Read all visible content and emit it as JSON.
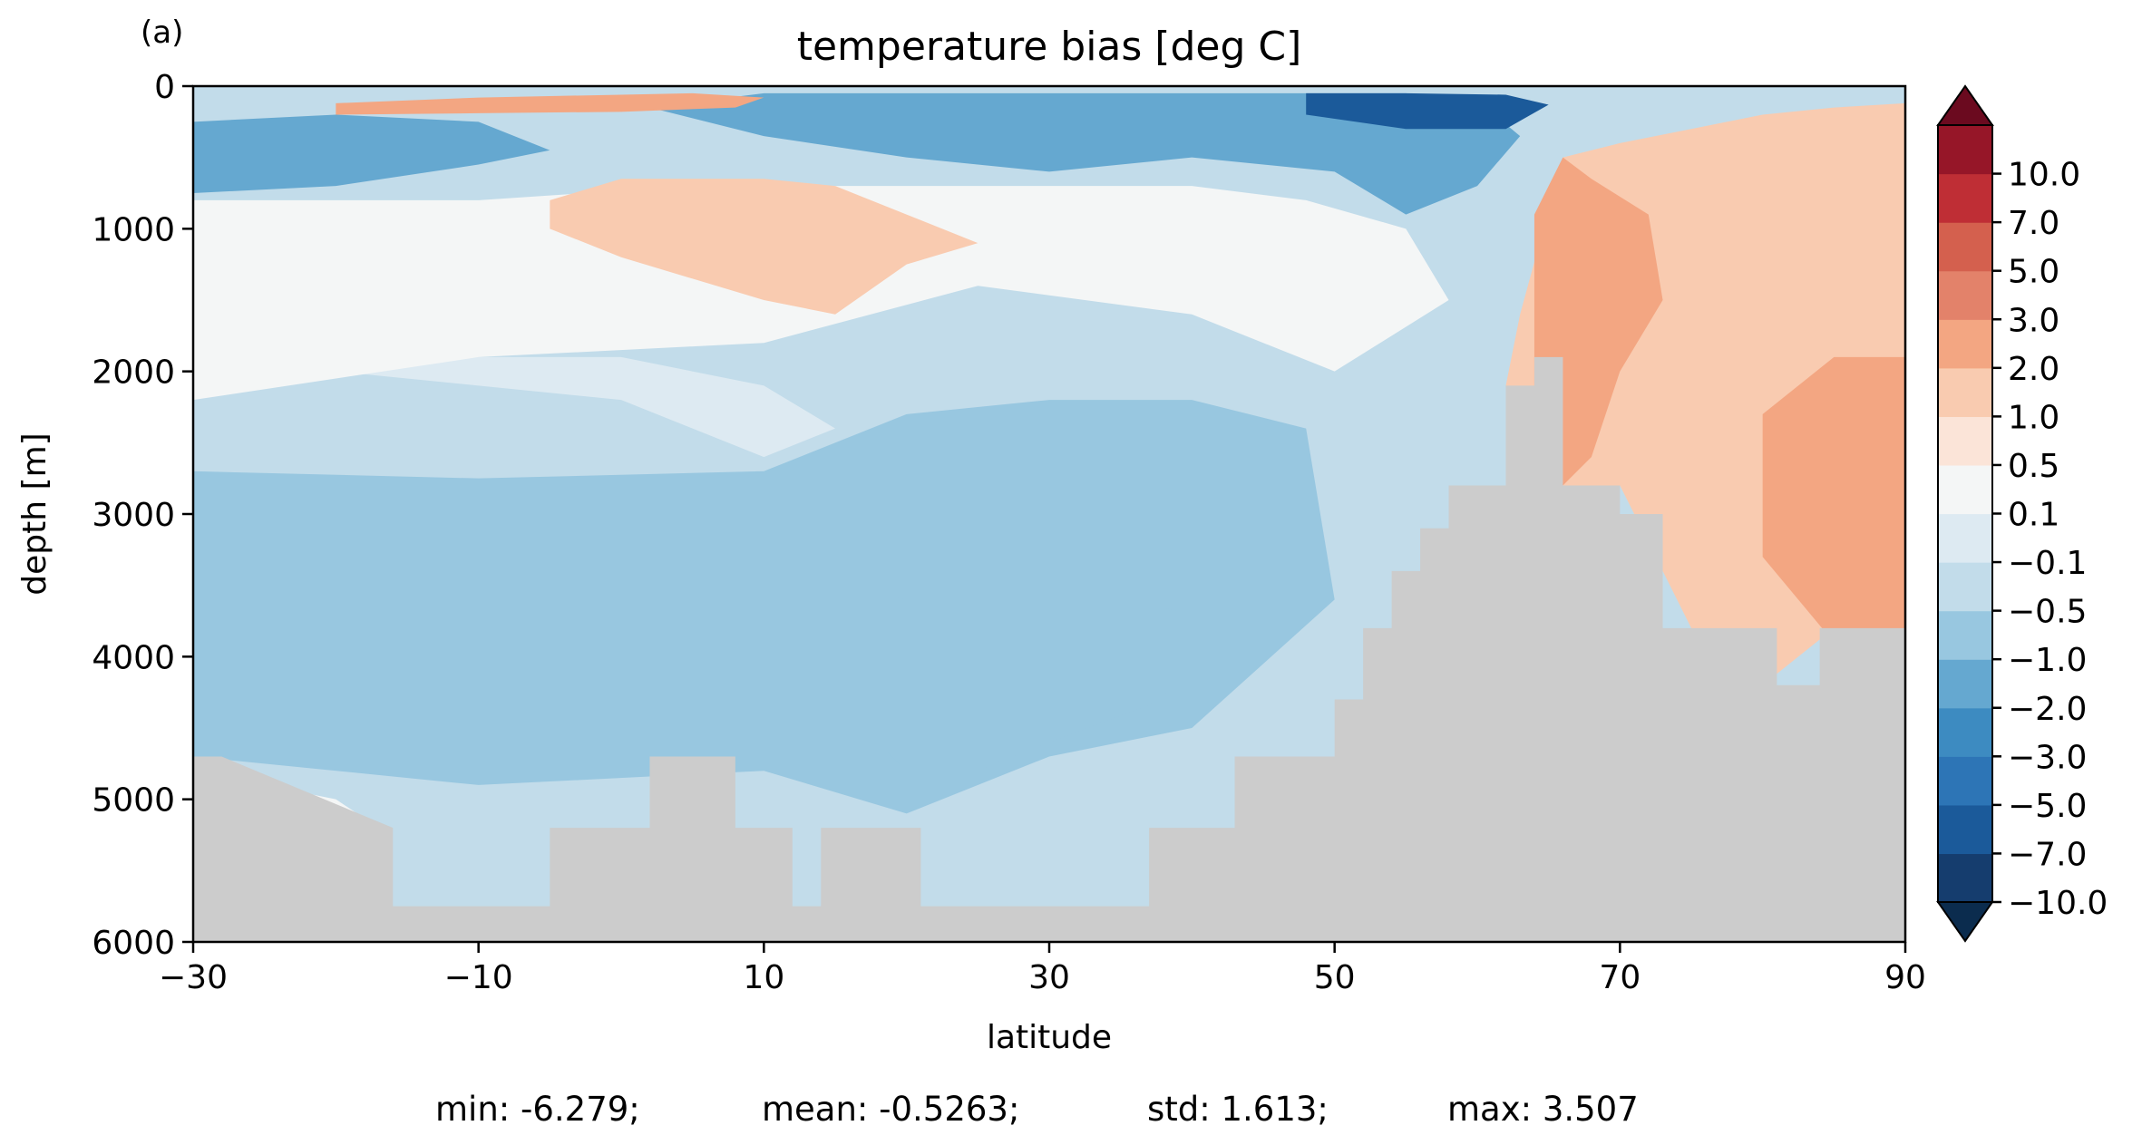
{
  "panel_label": "(a)",
  "stats": {
    "min": "min: -6.279;",
    "mean": "mean: -0.5263;",
    "std": "std: 1.613;",
    "max": "max: 3.507"
  },
  "chart_data": {
    "type": "heatmap",
    "title": "temperature bias [deg C]",
    "xlabel": "latitude",
    "ylabel": "depth [m]",
    "xlim": [
      -30,
      90
    ],
    "ylim": [
      6000,
      0
    ],
    "y_inverted": true,
    "x_ticks": [
      -30,
      -10,
      10,
      30,
      50,
      70,
      90
    ],
    "x_tick_labels": [
      "−30",
      "−10",
      "10",
      "30",
      "50",
      "70",
      "90"
    ],
    "y_ticks": [
      0,
      1000,
      2000,
      3000,
      4000,
      5000,
      6000
    ],
    "y_tick_labels": [
      "0",
      "1000",
      "2000",
      "3000",
      "4000",
      "5000",
      "6000"
    ],
    "grid": false,
    "colorbar": {
      "levels": [
        -10,
        -7,
        -5,
        -3,
        -2,
        -1,
        -0.5,
        -0.1,
        0.1,
        0.5,
        1,
        2,
        3,
        5,
        7,
        10
      ],
      "tick_labels": [
        "−10.0",
        "−7.0",
        "−5.0",
        "−3.0",
        "−2.0",
        "−1.0",
        "−0.5",
        "−0.1",
        "0.1",
        "0.5",
        "1.0",
        "2.0",
        "3.0",
        "5.0",
        "7.0",
        "10.0"
      ],
      "colors": [
        "#153d6e",
        "#1b5a9a",
        "#2d75b6",
        "#3d8bc1",
        "#65a8d0",
        "#98c7e0",
        "#c2dcea",
        "#ddeaf2",
        "#f4f6f6",
        "#fbe4d8",
        "#f9cbb0",
        "#f3a682",
        "#e3826a",
        "#d4604e",
        "#bf2e35",
        "#961628"
      ],
      "extend": "both",
      "under_color": "#0b2c4e",
      "over_color": "#6b0a1f"
    },
    "land_color": "#cccccc",
    "background_value": -0.3,
    "regions": [
      {
        "value": -0.7,
        "x": [
          -30,
          -10,
          10,
          20,
          30,
          40,
          48,
          50,
          40,
          30,
          20,
          10,
          -10,
          -30
        ],
        "y": [
          2700,
          2750,
          2700,
          2300,
          2200,
          2200,
          2400,
          3600,
          4500,
          4700,
          5100,
          4800,
          4900,
          4700
        ]
      },
      {
        "value": 0.0,
        "x": [
          -30,
          -20,
          -10,
          0,
          5,
          10,
          15,
          10,
          0,
          -10,
          -20,
          -30
        ],
        "y": [
          2000,
          2000,
          2100,
          2200,
          2400,
          2600,
          2400,
          2100,
          1900,
          1900,
          1800,
          1900
        ]
      },
      {
        "value": 0.3,
        "x": [
          -30,
          -10,
          5,
          20,
          40,
          48,
          55,
          58,
          50,
          40,
          25,
          10,
          -10,
          -30
        ],
        "y": [
          800,
          800,
          700,
          700,
          700,
          800,
          1000,
          1500,
          2000,
          1600,
          1400,
          1800,
          1900,
          2200
        ]
      },
      {
        "value": 1.5,
        "x": [
          -5,
          0,
          10,
          15,
          20,
          25,
          20,
          15,
          10,
          0,
          -5
        ],
        "y": [
          800,
          650,
          650,
          700,
          900,
          1100,
          1250,
          1600,
          1500,
          1200,
          1000
        ]
      },
      {
        "value": -1.5,
        "x": [
          2,
          10,
          20,
          30,
          40,
          50,
          55,
          60,
          63,
          60,
          55,
          50,
          40,
          30,
          20,
          10,
          2
        ],
        "y": [
          150,
          50,
          50,
          50,
          50,
          50,
          50,
          100,
          350,
          700,
          900,
          600,
          500,
          600,
          500,
          350,
          150
        ]
      },
      {
        "value": -5.5,
        "x": [
          48,
          55,
          62,
          65,
          62,
          55,
          48
        ],
        "y": [
          50,
          50,
          60,
          130,
          300,
          300,
          200
        ]
      },
      {
        "value": -1.5,
        "x": [
          -30,
          -20,
          -10,
          -5,
          -10,
          -20,
          -30
        ],
        "y": [
          250,
          200,
          250,
          450,
          550,
          700,
          750
        ]
      },
      {
        "value": 2.5,
        "x": [
          -20,
          -10,
          0,
          5,
          10,
          8,
          0,
          -10,
          -20
        ],
        "y": [
          120,
          80,
          60,
          50,
          80,
          150,
          180,
          190,
          200
        ]
      },
      {
        "value": 1.5,
        "x": [
          63,
          66,
          70,
          75,
          80,
          85,
          90,
          90,
          85,
          80,
          75,
          70,
          66,
          62
        ],
        "y": [
          1600,
          500,
          400,
          300,
          200,
          150,
          120,
          3800,
          3800,
          4200,
          3800,
          2800,
          2800,
          2100
        ]
      },
      {
        "value": 2.5,
        "x": [
          64,
          66,
          68,
          72,
          73,
          70,
          68,
          66,
          64
        ],
        "y": [
          900,
          500,
          650,
          900,
          1500,
          2000,
          2600,
          2800,
          2300
        ]
      },
      {
        "value": 2.5,
        "x": [
          80,
          85,
          90,
          90,
          85,
          80
        ],
        "y": [
          2300,
          1900,
          1900,
          3800,
          3900,
          3300
        ]
      },
      {
        "value": -0.7,
        "x": [
          15,
          20,
          28,
          35,
          40,
          38,
          30,
          25,
          20,
          15
        ],
        "y": [
          3500,
          3600,
          3600,
          3600,
          3700,
          4300,
          4600,
          4800,
          4800,
          4300
        ]
      },
      {
        "value": 0.3,
        "x": [
          -30,
          -25,
          -20,
          -17,
          -20,
          -25,
          -30
        ],
        "y": [
          4800,
          4900,
          5000,
          5200,
          5200,
          5200,
          5200
        ]
      }
    ],
    "land_mask": {
      "lat": [
        -30,
        -28,
        -16,
        -16,
        -10,
        -10,
        -5,
        -5,
        2,
        2,
        8,
        8,
        12,
        12,
        14,
        14,
        21,
        21,
        37,
        37,
        43,
        43,
        50,
        50,
        52,
        52,
        54,
        54,
        56,
        56,
        58,
        58,
        62,
        62,
        64,
        64,
        66,
        66,
        70,
        70,
        73,
        73,
        81,
        81,
        84,
        84,
        90
      ],
      "depth": [
        4700,
        4700,
        5200,
        5750,
        5750,
        5750,
        5750,
        5200,
        5200,
        4700,
        4700,
        5200,
        5200,
        5750,
        5750,
        5200,
        5200,
        5750,
        5750,
        5200,
        5200,
        4700,
        4700,
        4300,
        4300,
        3800,
        3800,
        3400,
        3400,
        3100,
        3100,
        2800,
        2800,
        2100,
        2100,
        1900,
        1900,
        2800,
        2800,
        3000,
        3000,
        3800,
        3800,
        4200,
        4200,
        3800,
        3800
      ]
    }
  }
}
